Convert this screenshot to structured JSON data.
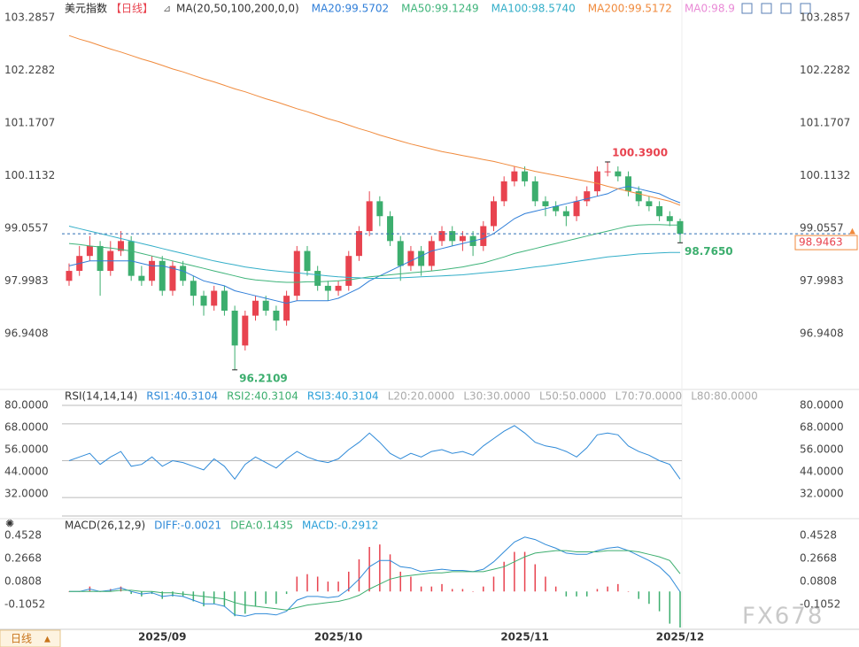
{
  "chart_data": [
    {
      "type": "candlestick",
      "title": "美元指数",
      "period": "【日线】",
      "indicator": "MA(20,50,100,200,0,0)",
      "categories": [
        null,
        null,
        null,
        null,
        null,
        null,
        null,
        null,
        null,
        "2025/09",
        null,
        null,
        null,
        null,
        null,
        null,
        null,
        null,
        null,
        null,
        null,
        null,
        null,
        null,
        null,
        null,
        "2025/10",
        null,
        null,
        null,
        null,
        null,
        null,
        null,
        null,
        null,
        null,
        null,
        null,
        null,
        null,
        null,
        null,
        null,
        "2025/11",
        null,
        null,
        null,
        null,
        null,
        null,
        null,
        null,
        null,
        null,
        null,
        null,
        null,
        null,
        "2025/12"
      ],
      "open": [
        98.0,
        98.2,
        98.5,
        98.7,
        98.2,
        98.6,
        98.8,
        98.1,
        98.0,
        98.4,
        97.8,
        98.3,
        98.0,
        97.7,
        97.5,
        97.8,
        97.4,
        96.7,
        97.3,
        97.6,
        97.4,
        97.2,
        97.7,
        98.6,
        98.2,
        97.9,
        97.8,
        97.9,
        98.5,
        99.0,
        99.6,
        99.3,
        98.8,
        98.3,
        98.6,
        98.3,
        98.8,
        99.0,
        98.8,
        98.9,
        98.7,
        99.1,
        99.6,
        100.0,
        100.2,
        100.0,
        99.6,
        99.5,
        99.4,
        99.3,
        99.6,
        99.8,
        100.2,
        100.2,
        100.1,
        99.8,
        99.6,
        99.5,
        99.3,
        99.2
      ],
      "high": [
        98.35,
        98.7,
        98.9,
        98.8,
        98.8,
        99.0,
        98.9,
        98.3,
        98.5,
        98.5,
        98.4,
        98.4,
        98.1,
        97.8,
        97.9,
        97.9,
        97.5,
        97.4,
        97.7,
        97.7,
        97.5,
        97.8,
        98.7,
        98.7,
        98.3,
        98.0,
        98.0,
        98.6,
        99.1,
        99.8,
        99.7,
        99.4,
        98.9,
        98.7,
        98.7,
        98.9,
        99.1,
        99.1,
        99.0,
        99.0,
        99.2,
        99.7,
        100.1,
        100.3,
        100.3,
        100.1,
        99.7,
        99.6,
        99.5,
        99.7,
        99.9,
        100.3,
        100.39,
        100.3,
        100.2,
        99.9,
        99.7,
        99.6,
        99.4,
        99.25
      ],
      "low": [
        97.9,
        98.1,
        98.4,
        97.7,
        98.1,
        98.5,
        98.0,
        97.9,
        97.9,
        97.7,
        97.7,
        97.9,
        97.5,
        97.3,
        97.4,
        97.3,
        96.2109,
        96.6,
        97.2,
        97.3,
        97.0,
        97.1,
        97.6,
        98.1,
        97.8,
        97.6,
        97.7,
        97.8,
        98.4,
        98.9,
        99.1,
        98.7,
        98.0,
        98.2,
        98.1,
        98.2,
        98.7,
        98.7,
        98.6,
        98.5,
        98.6,
        99.0,
        99.5,
        99.9,
        99.9,
        99.5,
        99.3,
        99.3,
        99.1,
        99.2,
        99.5,
        99.7,
        100.1,
        100.0,
        99.7,
        99.5,
        99.4,
        99.2,
        99.1,
        98.765
      ],
      "close": [
        98.2,
        98.5,
        98.7,
        98.2,
        98.6,
        98.8,
        98.1,
        98.0,
        98.4,
        97.8,
        98.3,
        98.0,
        97.7,
        97.5,
        97.8,
        97.4,
        96.7,
        97.3,
        97.6,
        97.4,
        97.2,
        97.7,
        98.6,
        98.2,
        97.9,
        97.8,
        97.9,
        98.5,
        99.0,
        99.6,
        99.3,
        98.8,
        98.3,
        98.6,
        98.3,
        98.8,
        99.0,
        98.8,
        98.9,
        98.7,
        99.1,
        99.6,
        100.0,
        100.2,
        100.0,
        99.6,
        99.5,
        99.4,
        99.3,
        99.6,
        99.8,
        100.2,
        100.2,
        100.1,
        99.8,
        99.6,
        99.5,
        99.3,
        99.2,
        98.9463
      ],
      "up_color": "#e8434f",
      "down_color": "#3cae6e",
      "overlays": [
        {
          "name": "MA20:99.5702",
          "color": "#2f7ed8",
          "values": [
            98.3,
            98.35,
            98.4,
            98.4,
            98.4,
            98.4,
            98.4,
            98.35,
            98.3,
            98.3,
            98.25,
            98.2,
            98.1,
            98.0,
            97.95,
            97.9,
            97.8,
            97.75,
            97.7,
            97.65,
            97.6,
            97.55,
            97.6,
            97.6,
            97.6,
            97.6,
            97.65,
            97.75,
            97.85,
            98.0,
            98.1,
            98.2,
            98.3,
            98.4,
            98.5,
            98.6,
            98.65,
            98.7,
            98.75,
            98.8,
            98.85,
            98.95,
            99.1,
            99.25,
            99.35,
            99.4,
            99.45,
            99.5,
            99.55,
            99.6,
            99.65,
            99.7,
            99.75,
            99.85,
            99.9,
            99.85,
            99.8,
            99.75,
            99.65,
            99.57
          ]
        },
        {
          "name": "MA50:99.1249",
          "color": "#3fb47a",
          "values": [
            98.75,
            98.73,
            98.7,
            98.68,
            98.66,
            98.63,
            98.6,
            98.55,
            98.5,
            98.45,
            98.4,
            98.35,
            98.3,
            98.25,
            98.2,
            98.15,
            98.1,
            98.05,
            98.02,
            98.0,
            97.98,
            97.97,
            97.97,
            97.98,
            97.98,
            97.99,
            98.0,
            98.02,
            98.05,
            98.08,
            98.1,
            98.12,
            98.14,
            98.16,
            98.18,
            98.2,
            98.22,
            98.25,
            98.28,
            98.32,
            98.36,
            98.42,
            98.48,
            98.55,
            98.6,
            98.65,
            98.7,
            98.75,
            98.8,
            98.85,
            98.9,
            98.95,
            99.0,
            99.05,
            99.1,
            99.12,
            99.13,
            99.13,
            99.12,
            99.12
          ]
        },
        {
          "name": "MA100:98.5740",
          "color": "#33aec8",
          "values": [
            99.1,
            99.05,
            99.0,
            98.95,
            98.9,
            98.85,
            98.8,
            98.75,
            98.7,
            98.65,
            98.6,
            98.55,
            98.5,
            98.45,
            98.4,
            98.36,
            98.32,
            98.28,
            98.25,
            98.22,
            98.2,
            98.18,
            98.16,
            98.14,
            98.12,
            98.1,
            98.08,
            98.07,
            98.06,
            98.05,
            98.05,
            98.05,
            98.06,
            98.07,
            98.08,
            98.09,
            98.1,
            98.11,
            98.12,
            98.14,
            98.16,
            98.18,
            98.2,
            98.22,
            98.25,
            98.28,
            98.3,
            98.33,
            98.36,
            98.39,
            98.42,
            98.45,
            98.48,
            98.5,
            98.52,
            98.54,
            98.55,
            98.56,
            98.57,
            98.57
          ]
        },
        {
          "name": "MA200:99.5172",
          "color": "#f08a3c",
          "values": [
            102.93,
            102.86,
            102.8,
            102.73,
            102.66,
            102.6,
            102.53,
            102.46,
            102.4,
            102.33,
            102.26,
            102.2,
            102.13,
            102.06,
            102.0,
            101.93,
            101.86,
            101.8,
            101.73,
            101.66,
            101.6,
            101.53,
            101.46,
            101.4,
            101.33,
            101.26,
            101.2,
            101.13,
            101.06,
            101.0,
            100.93,
            100.87,
            100.81,
            100.75,
            100.7,
            100.65,
            100.6,
            100.56,
            100.52,
            100.48,
            100.44,
            100.4,
            100.35,
            100.3,
            100.25,
            100.2,
            100.16,
            100.12,
            100.08,
            100.04,
            100.0,
            99.96,
            99.9,
            99.85,
            99.8,
            99.75,
            99.7,
            99.65,
            99.6,
            99.52
          ]
        }
      ],
      "extra_legend": [
        {
          "name": "MA0:98.9",
          "color": "#e98ad6"
        }
      ],
      "annotations": [
        {
          "value": 100.39,
          "label": "100.3900",
          "field": "high",
          "color": "#e8434f"
        },
        {
          "value": 96.2109,
          "label": "96.2109",
          "field": "low",
          "color": "#3cae6e"
        },
        {
          "value": 98.765,
          "label": "98.7650",
          "field": "low",
          "color": "#3cae6e"
        }
      ],
      "last_price": {
        "value": 98.9463,
        "label": "98.9463"
      },
      "ylim": [
        95.87,
        103.61
      ],
      "yticks": [
        96.9408,
        97.9983,
        99.0557,
        100.1132,
        101.1707,
        102.2282,
        103.2857
      ]
    },
    {
      "type": "line",
      "title": "RSI(14,14,14)",
      "series": [
        {
          "name": "RSI1:40.3104",
          "color": "#2f8ad8",
          "values": [
            50,
            52,
            54,
            48,
            52,
            55,
            47,
            48,
            52,
            47,
            50,
            49,
            47,
            45,
            51,
            47,
            40,
            48,
            52,
            49,
            46,
            51,
            55,
            52,
            50,
            49,
            51,
            56,
            60,
            65,
            60,
            54,
            51,
            54,
            52,
            55,
            56,
            54,
            55,
            53,
            58,
            62,
            66,
            69,
            65,
            60,
            58,
            57,
            55,
            52,
            57,
            64,
            65,
            64,
            58,
            55,
            53,
            50,
            48,
            40
          ]
        }
      ],
      "extra_legend": [
        {
          "name": "RSI2:40.3104",
          "color": "#3cae6e"
        },
        {
          "name": "RSI3:40.3104",
          "color": "#2a9fd8"
        }
      ],
      "levels": [
        {
          "value": 20,
          "label": "L20:20.0000"
        },
        {
          "value": 30,
          "label": "L30:30.0000"
        },
        {
          "value": 50,
          "label": "L50:50.0000"
        },
        {
          "value": 70,
          "label": "L70:70.0000"
        },
        {
          "value": 80,
          "label": "L80:80.0000"
        }
      ],
      "ylim": [
        20,
        85
      ],
      "yticks": [
        {
          "value": 32,
          "label": "32.0000"
        },
        {
          "value": 44,
          "label": "44.0000"
        },
        {
          "value": 56,
          "label": "56.0000"
        },
        {
          "value": 68,
          "label": "68.0000"
        },
        {
          "value": 80,
          "label": "80.0000"
        }
      ]
    },
    {
      "type": "macd",
      "title": "MACD(26,12,9)",
      "series": [
        {
          "name": "DIFF:-0.0021",
          "color": "#2f8ad8",
          "values": [
            0.0,
            0.0,
            0.02,
            0.0,
            0.01,
            0.03,
            0.0,
            -0.02,
            -0.01,
            -0.04,
            -0.03,
            -0.04,
            -0.07,
            -0.1,
            -0.1,
            -0.12,
            -0.19,
            -0.2,
            -0.18,
            -0.18,
            -0.19,
            -0.16,
            -0.07,
            -0.04,
            -0.04,
            -0.05,
            -0.04,
            0.02,
            0.1,
            0.2,
            0.25,
            0.25,
            0.2,
            0.19,
            0.16,
            0.17,
            0.18,
            0.17,
            0.17,
            0.16,
            0.18,
            0.24,
            0.32,
            0.4,
            0.44,
            0.42,
            0.38,
            0.35,
            0.31,
            0.3,
            0.3,
            0.33,
            0.35,
            0.36,
            0.33,
            0.29,
            0.25,
            0.2,
            0.12,
            -0.0021
          ]
        },
        {
          "name": "DEA:0.1435",
          "color": "#3cae6e",
          "values": [
            0.0,
            0.0,
            0.0,
            0.0,
            0.0,
            0.01,
            0.01,
            0.0,
            0.0,
            -0.01,
            -0.01,
            -0.02,
            -0.03,
            -0.04,
            -0.05,
            -0.06,
            -0.09,
            -0.11,
            -0.12,
            -0.13,
            -0.14,
            -0.15,
            -0.13,
            -0.11,
            -0.1,
            -0.09,
            -0.08,
            -0.06,
            -0.03,
            0.02,
            0.06,
            0.1,
            0.12,
            0.13,
            0.14,
            0.15,
            0.15,
            0.16,
            0.16,
            0.16,
            0.16,
            0.18,
            0.2,
            0.24,
            0.28,
            0.31,
            0.32,
            0.33,
            0.33,
            0.32,
            0.32,
            0.32,
            0.33,
            0.33,
            0.33,
            0.32,
            0.3,
            0.28,
            0.25,
            0.1435
          ]
        }
      ],
      "histogram": {
        "name": "MACD:-0.2912",
        "color": "#2a9fd8",
        "up_color": "#e8434f",
        "down_color": "#3cae6e",
        "values": [
          0,
          0,
          0.04,
          0,
          0.02,
          0.04,
          -0.02,
          -0.04,
          -0.02,
          -0.06,
          -0.04,
          -0.04,
          -0.08,
          -0.12,
          -0.1,
          -0.12,
          -0.2,
          -0.18,
          -0.12,
          -0.1,
          -0.1,
          -0.02,
          0.12,
          0.14,
          0.12,
          0.08,
          0.08,
          0.16,
          0.26,
          0.36,
          0.38,
          0.3,
          0.16,
          0.12,
          0.04,
          0.04,
          0.06,
          0.02,
          0.02,
          0,
          0.04,
          0.12,
          0.24,
          0.32,
          0.32,
          0.22,
          0.12,
          0.04,
          -0.04,
          -0.04,
          -0.04,
          0.02,
          0.04,
          0.06,
          0,
          -0.06,
          -0.1,
          -0.16,
          -0.26,
          -0.2912
        ]
      },
      "ylim": [
        -0.3,
        0.545
      ],
      "yticks": [
        -0.1052,
        0.0808,
        0.2668,
        0.4528
      ]
    }
  ],
  "footer": {
    "period_button": "日线"
  },
  "watermark": "FX678"
}
